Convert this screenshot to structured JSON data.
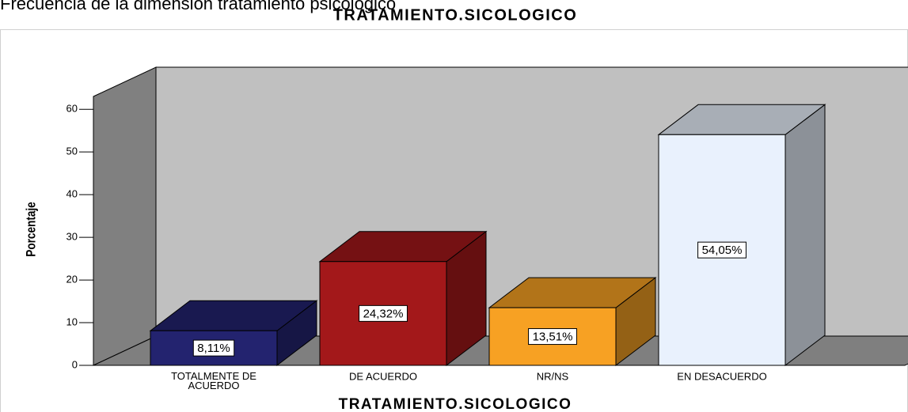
{
  "caption": "Frecuencia de la dimensión tratamiento psicológico",
  "chart_data": {
    "type": "bar3d",
    "title": "TRATAMIENTO.SICOLOGICO",
    "xlabel": "TRATAMIENTO.SICOLOGICO",
    "ylabel": "Porcentaje",
    "categories": [
      "TOTALMENTE  DE ACUERDO",
      "DE ACUERDO",
      "NR/NS",
      "EN DESACUERDO"
    ],
    "values": [
      8.11,
      24.32,
      13.51,
      54.05
    ],
    "value_labels": [
      "8,11%",
      "24,32%",
      "13,51%",
      "54,05%"
    ],
    "colors": [
      "#23236f",
      "#a3181a",
      "#f7a123",
      "#e9f1fd"
    ],
    "ylim": [
      0,
      63
    ],
    "yticks": [
      0,
      10,
      20,
      30,
      40,
      50,
      60
    ]
  }
}
